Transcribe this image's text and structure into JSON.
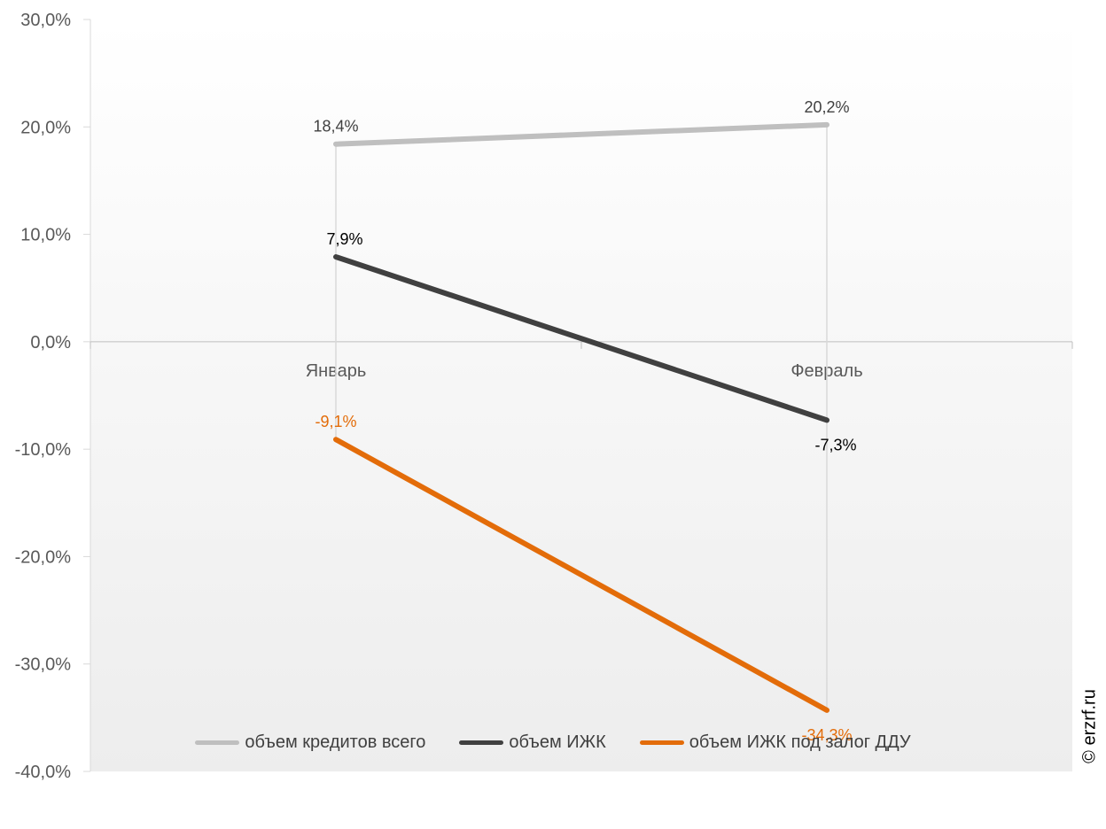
{
  "chart_data": {
    "type": "line",
    "categories": [
      "Январь",
      "Февраль"
    ],
    "series": [
      {
        "name": "объем кредитов всего",
        "values": [
          18.4,
          20.2
        ],
        "labels": [
          "18,4%",
          "20,2%"
        ],
        "color": "#bfbfbf",
        "label_color": "#404040"
      },
      {
        "name": "объем ИЖК",
        "values": [
          7.9,
          -7.3
        ],
        "labels": [
          "7,9%",
          "-7,3%"
        ],
        "color": "#404040",
        "label_color": "#000000"
      },
      {
        "name": "объем ИЖК под залог ДДУ",
        "values": [
          -9.1,
          -34.3
        ],
        "labels": [
          "-9,1%",
          "-34,3%"
        ],
        "color": "#e36c09",
        "label_color": "#e36c09"
      }
    ],
    "ylim": [
      -40,
      30
    ],
    "y_ticks": [
      30,
      20,
      10,
      0,
      -10,
      -20,
      -30,
      -40
    ],
    "y_tick_labels": [
      "30,0%",
      "20,0%",
      "10,0%",
      "0,0%",
      "-10,0%",
      "-20,0%",
      "-30,0%",
      "-40,0%"
    ],
    "legend_position": "bottom",
    "grid": false,
    "drop_lines": true
  },
  "watermark": "© erzrf.ru"
}
